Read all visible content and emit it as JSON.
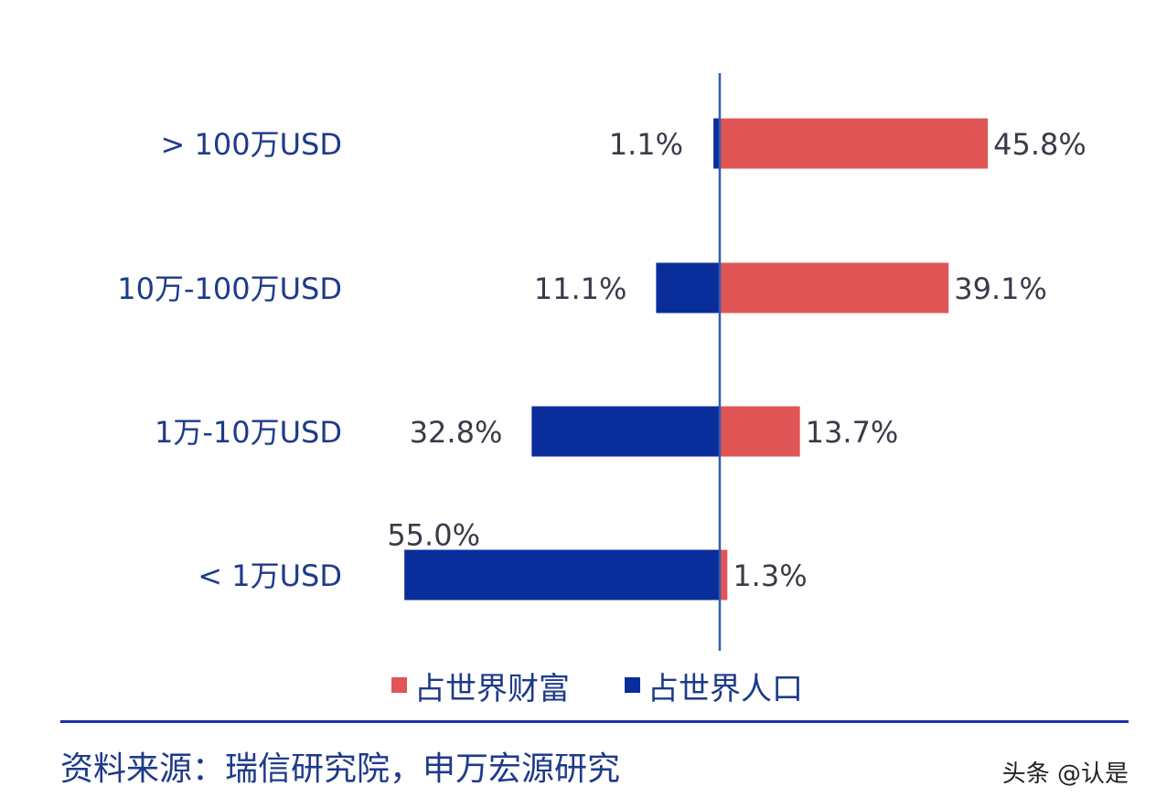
{
  "chart_data": {
    "type": "bar",
    "orientation": "horizontal-diverging",
    "categories": [
      "> 100万USD",
      "10万-100万USD",
      "1万-10万USD",
      "< 1万USD"
    ],
    "series": [
      {
        "name": "占世界财富",
        "color": "#e05656",
        "values": [
          45.8,
          39.1,
          13.7,
          1.3
        ],
        "labels": [
          "45.8%",
          "39.1%",
          "13.7%",
          "1.3%"
        ]
      },
      {
        "name": "占世界人口",
        "color": "#0a2d9c",
        "values": [
          1.1,
          11.1,
          32.8,
          55.0
        ],
        "labels": [
          "1.1%",
          "11.1%",
          "32.8%",
          "55.0%"
        ]
      }
    ],
    "axis_color": "#2f5fb0",
    "legend_position": "bottom",
    "grid": false
  },
  "source": "资料来源：瑞信研究院，申万宏源研究",
  "watermark": "头条 @认是"
}
